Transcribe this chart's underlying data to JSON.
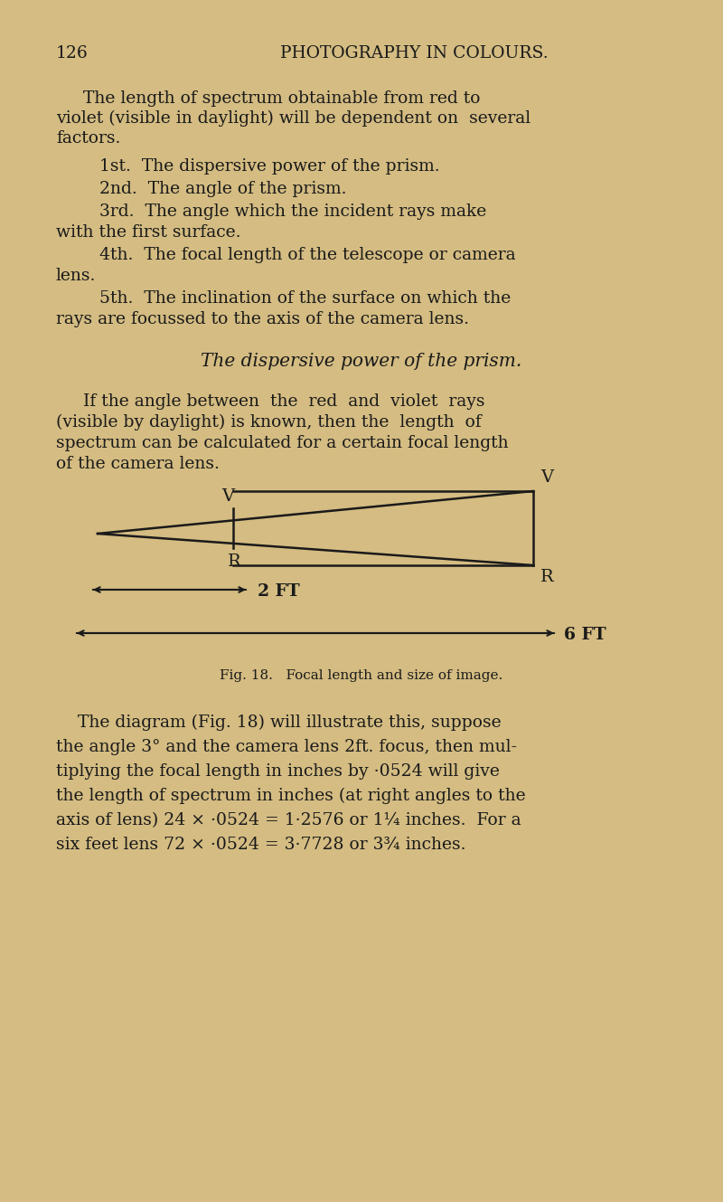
{
  "background_color": "#d4bc82",
  "page_number": "126",
  "header": "PHOTOGRAPHY IN COLOURS.",
  "text_color": "#1a1a1a",
  "font_size_body": 13.5,
  "font_size_header": 14,
  "font_size_small": 11,
  "fig_caption": "Fig. 18.   Focal length and size of image.",
  "paragraph3_lines": [
    "    The diagram (Fig. 18) will illustrate this, suppose",
    "the angle 3° and the camera lens 2ft. focus, then mul-",
    "tiplying the focal length in inches by ·0524 will give",
    "the length of spectrum in inches (at right angles to the",
    "axis of lens) 24 × ·0524 = 1·2576 or 1¼ inches.  For a",
    "six feet lens 72 × ·0524 = 3·7728 or 3¾ inches."
  ]
}
